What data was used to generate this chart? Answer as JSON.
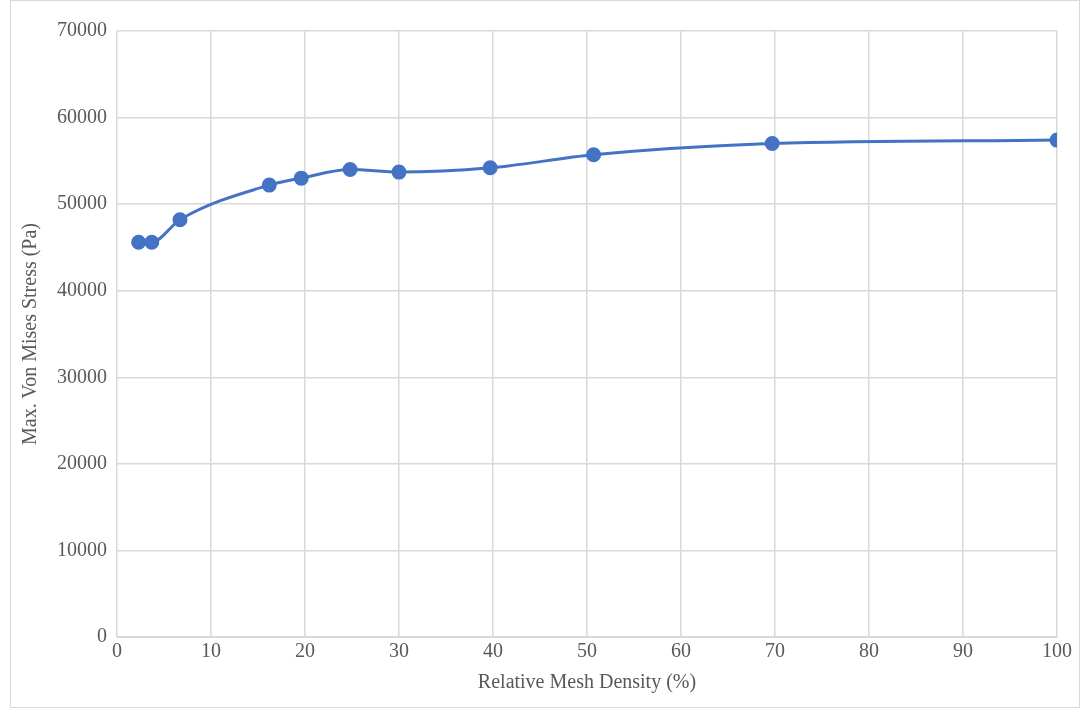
{
  "chart_data": {
    "type": "line",
    "xlabel": "Relative Mesh Density (%)",
    "ylabel": "Max. Von Mises Stress (Pa)",
    "x": [
      2.3,
      3.7,
      6.7,
      16.2,
      19.6,
      24.8,
      30.0,
      39.7,
      50.7,
      69.7,
      100
    ],
    "series": [
      {
        "color": "#4472c4",
        "values": [
          45600,
          45600,
          48200,
          52200,
          53000,
          54000,
          53700,
          54200,
          55700,
          57000,
          57400
        ]
      }
    ],
    "xlim": [
      0,
      100
    ],
    "xticks": [
      0,
      10,
      20,
      30,
      40,
      50,
      60,
      70,
      80,
      90,
      100
    ],
    "ylim": [
      0,
      70000
    ],
    "yticks": [
      0,
      10000,
      20000,
      30000,
      40000,
      50000,
      60000,
      70000
    ],
    "grid": true,
    "legend": false,
    "marker": "circle",
    "line_style": "solid"
  }
}
